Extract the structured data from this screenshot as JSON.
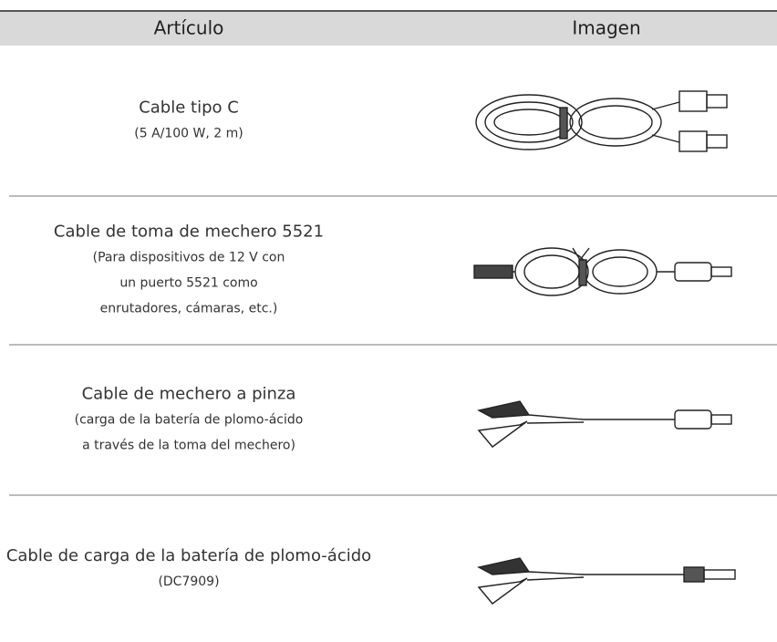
{
  "table": {
    "header": [
      "Artículo",
      "Imagen"
    ],
    "rows": [
      {
        "title": "Cable tipo C",
        "details": [
          "(5 A/100 W, 2 m)"
        ]
      },
      {
        "title": "Cable de toma de mechero 5521",
        "details": [
          "(Para dispositivos de 12 V con",
          "un puerto 5521 como",
          "enrutadores, cámaras, etc.)"
        ]
      },
      {
        "title": "Cable de mechero a pinza",
        "details": [
          "(carga de la batería de plomo-ácido",
          "a través de la toma del mechero)"
        ]
      },
      {
        "title": "Cable de carga de la batería de plomo-ácido",
        "details": [
          "(DC7909)"
        ]
      }
    ]
  }
}
